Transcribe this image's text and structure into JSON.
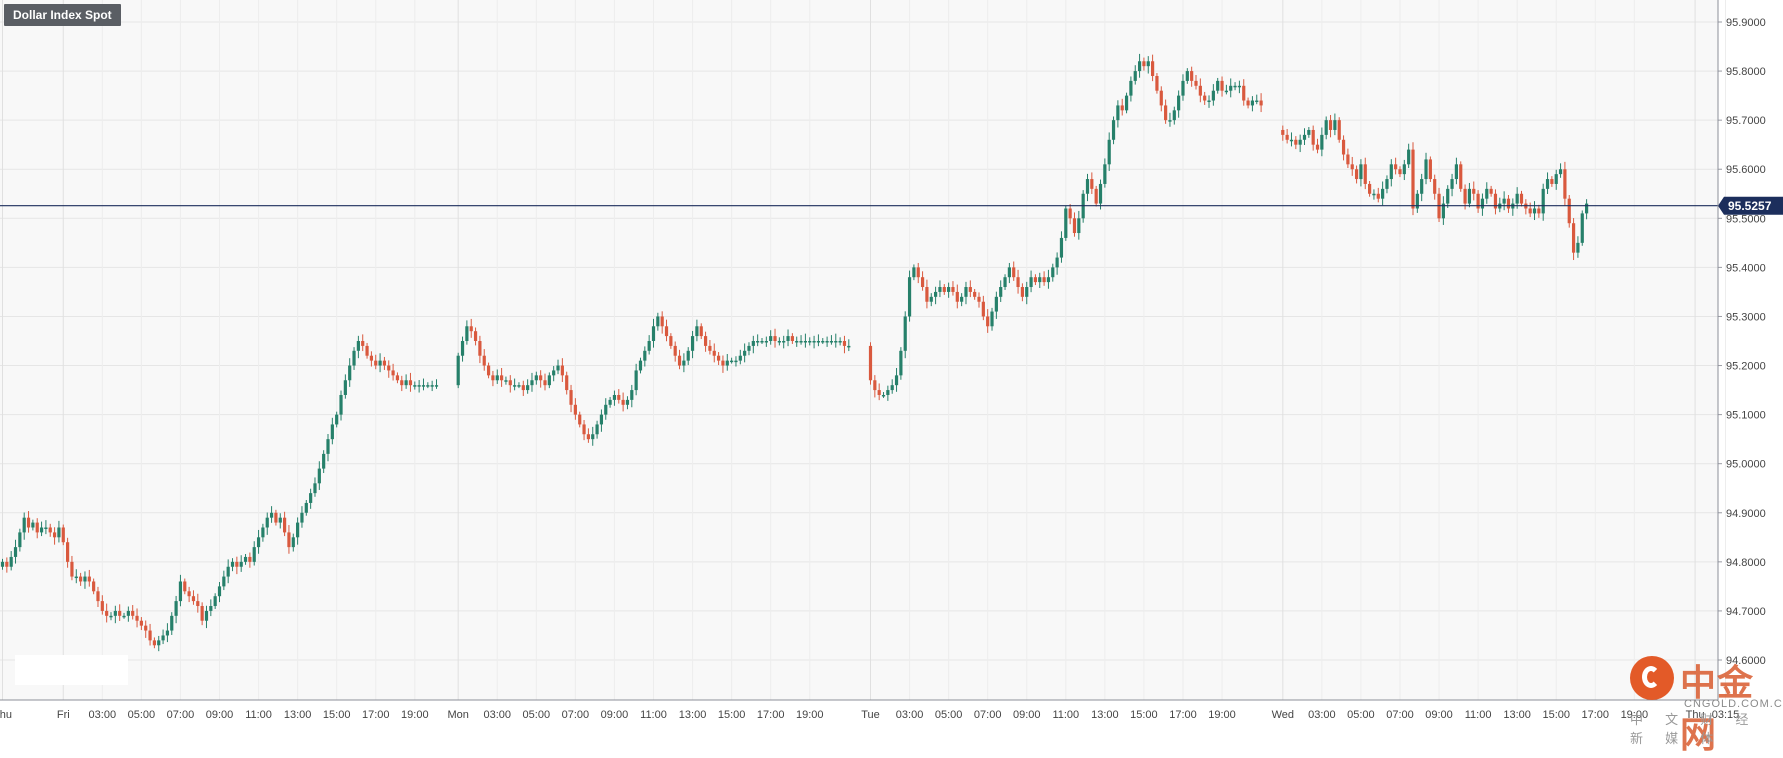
{
  "chart_title": "Dollar Index Spot",
  "price_tag": "95.5257",
  "watermark": {
    "brand": "中金网",
    "url": "CNGOLD.COM.CN",
    "tagline": "中 文 财 经 新 媒 体"
  },
  "colors": {
    "up": "#26806a",
    "down": "#d9593e",
    "price_line": "#1c2e5c",
    "price_tag_bg": "#1c2e5c",
    "grid": "#e6e6e6",
    "plot_bg": "#f8f8f8"
  },
  "chart_data": {
    "type": "candlestick",
    "title": "Dollar Index Spot",
    "ylim": [
      94.57,
      95.94
    ],
    "y_ticks": [
      "95.9000",
      "95.8000",
      "95.7000",
      "95.6000",
      "95.5000",
      "95.4000",
      "95.3000",
      "95.2000",
      "95.1000",
      "95.0000",
      "94.9000",
      "94.8000",
      "94.7000",
      "94.6000"
    ],
    "x_ticks": [
      {
        "label": "Thu",
        "bar": 0
      },
      {
        "label": "Fri",
        "bar": 14
      },
      {
        "label": "03:00",
        "bar": 23
      },
      {
        "label": "05:00",
        "bar": 32
      },
      {
        "label": "07:00",
        "bar": 41
      },
      {
        "label": "09:00",
        "bar": 50
      },
      {
        "label": "11:00",
        "bar": 59
      },
      {
        "label": "13:00",
        "bar": 68
      },
      {
        "label": "15:00",
        "bar": 77
      },
      {
        "label": "17:00",
        "bar": 86
      },
      {
        "label": "19:00",
        "bar": 95
      },
      {
        "label": "Mon",
        "bar": 105
      },
      {
        "label": "03:00",
        "bar": 114
      },
      {
        "label": "05:00",
        "bar": 123
      },
      {
        "label": "07:00",
        "bar": 132
      },
      {
        "label": "09:00",
        "bar": 141
      },
      {
        "label": "11:00",
        "bar": 150
      },
      {
        "label": "13:00",
        "bar": 159
      },
      {
        "label": "15:00",
        "bar": 168
      },
      {
        "label": "17:00",
        "bar": 177
      },
      {
        "label": "19:00",
        "bar": 186
      },
      {
        "label": "Tue",
        "bar": 200
      },
      {
        "label": "03:00",
        "bar": 209
      },
      {
        "label": "05:00",
        "bar": 218
      },
      {
        "label": "07:00",
        "bar": 227
      },
      {
        "label": "09:00",
        "bar": 236
      },
      {
        "label": "11:00",
        "bar": 245
      },
      {
        "label": "13:00",
        "bar": 254
      },
      {
        "label": "15:00",
        "bar": 263
      },
      {
        "label": "17:00",
        "bar": 272
      },
      {
        "label": "19:00",
        "bar": 281
      },
      {
        "label": "Wed",
        "bar": 295
      },
      {
        "label": "03:00",
        "bar": 304
      },
      {
        "label": "05:00",
        "bar": 313
      },
      {
        "label": "07:00",
        "bar": 322
      },
      {
        "label": "09:00",
        "bar": 331
      },
      {
        "label": "11:00",
        "bar": 340
      },
      {
        "label": "13:00",
        "bar": 349
      },
      {
        "label": "15:00",
        "bar": 358
      },
      {
        "label": "17:00",
        "bar": 367
      },
      {
        "label": "19:00",
        "bar": 376
      },
      {
        "label": "Thu",
        "bar": 390
      },
      {
        "label": "03:15",
        "bar": 397
      }
    ],
    "current_price": 95.5257,
    "closes": [
      94.8,
      94.79,
      94.81,
      94.83,
      94.86,
      94.89,
      94.87,
      94.88,
      94.86,
      94.87,
      94.87,
      94.86,
      94.85,
      94.87,
      94.84,
      94.8,
      94.77,
      94.77,
      94.76,
      94.77,
      94.76,
      94.74,
      94.72,
      94.7,
      94.69,
      94.69,
      94.7,
      94.69,
      94.69,
      94.7,
      94.69,
      94.68,
      94.67,
      94.66,
      94.64,
      94.63,
      94.64,
      94.65,
      94.66,
      94.69,
      94.72,
      94.76,
      94.74,
      94.73,
      94.72,
      94.71,
      94.68,
      94.7,
      94.71,
      94.73,
      94.75,
      94.77,
      94.79,
      94.8,
      94.79,
      94.8,
      94.81,
      94.8,
      94.83,
      94.85,
      94.87,
      94.89,
      94.9,
      94.88,
      94.89,
      94.86,
      94.83,
      94.85,
      94.88,
      94.9,
      94.92,
      94.94,
      94.96,
      94.99,
      95.02,
      95.05,
      95.08,
      95.1,
      95.14,
      95.17,
      95.2,
      95.23,
      95.25,
      95.24,
      95.22,
      95.21,
      95.2,
      95.21,
      95.2,
      95.19,
      95.18,
      95.17,
      95.16,
      95.17,
      95.16,
      95.16,
      95.16,
      95.16,
      95.16,
      95.16,
      95.16,
      95.16,
      95.16,
      95.16,
      95.16,
      95.22,
      95.25,
      95.28,
      95.27,
      95.25,
      95.22,
      95.2,
      95.18,
      95.17,
      95.18,
      95.17,
      95.17,
      95.16,
      95.16,
      95.16,
      95.15,
      95.16,
      95.17,
      95.18,
      95.17,
      95.16,
      95.18,
      95.19,
      95.2,
      95.18,
      95.15,
      95.12,
      95.1,
      95.08,
      95.06,
      95.05,
      95.06,
      95.08,
      95.1,
      95.12,
      95.13,
      95.14,
      95.13,
      95.12,
      95.13,
      95.15,
      95.19,
      95.21,
      95.23,
      95.25,
      95.28,
      95.3,
      95.28,
      95.26,
      95.24,
      95.22,
      95.2,
      95.21,
      95.23,
      95.26,
      95.28,
      95.26,
      95.24,
      95.23,
      95.22,
      95.21,
      95.2,
      95.21,
      95.21,
      95.21,
      95.22,
      95.23,
      95.24,
      95.25,
      95.25,
      95.25,
      95.25,
      95.26,
      95.25,
      95.25,
      95.25,
      95.26,
      95.25,
      95.25,
      95.25,
      95.25,
      95.25,
      95.25,
      95.25,
      95.25,
      95.25,
      95.25,
      95.25,
      95.25,
      95.24,
      95.24,
      95.24,
      95.24,
      95.24,
      95.24,
      95.17,
      95.15,
      95.14,
      95.14,
      95.15,
      95.16,
      95.18,
      95.23,
      95.3,
      95.38,
      95.4,
      95.38,
      95.36,
      95.33,
      95.34,
      95.35,
      95.36,
      95.35,
      95.36,
      95.35,
      95.33,
      95.34,
      95.36,
      95.35,
      95.34,
      95.33,
      95.3,
      95.28,
      95.31,
      95.34,
      95.36,
      95.38,
      95.4,
      95.38,
      95.36,
      95.34,
      95.36,
      95.38,
      95.37,
      95.38,
      95.37,
      95.38,
      95.4,
      95.42,
      95.46,
      95.52,
      95.5,
      95.47,
      95.5,
      95.55,
      95.58,
      95.56,
      95.53,
      95.57,
      95.61,
      95.66,
      95.7,
      95.73,
      95.72,
      95.75,
      95.78,
      95.8,
      95.82,
      95.81,
      95.82,
      95.79,
      95.76,
      95.73,
      95.7,
      95.7,
      95.72,
      95.75,
      95.78,
      95.8,
      95.78,
      95.77,
      95.75,
      95.74,
      95.74,
      95.76,
      95.78,
      95.76,
      95.76,
      95.77,
      95.77,
      95.77,
      95.74,
      95.73,
      95.74,
      95.74,
      95.73,
      95.71,
      95.69,
      95.68,
      95.68,
      95.67,
      95.66,
      95.66,
      95.65,
      95.66,
      95.67,
      95.68,
      95.65,
      95.64,
      95.67,
      95.7,
      95.68,
      95.7,
      95.66,
      95.63,
      95.61,
      95.6,
      95.58,
      95.61,
      95.57,
      95.55,
      95.55,
      95.54,
      95.56,
      95.58,
      95.61,
      95.6,
      95.59,
      95.61,
      95.64,
      95.52,
      95.55,
      95.58,
      95.62,
      95.58,
      95.55,
      95.5,
      95.53,
      95.56,
      95.58,
      95.61,
      95.56,
      95.53,
      95.56,
      95.55,
      95.52,
      95.54,
      95.56,
      95.55,
      95.52,
      95.53,
      95.54,
      95.52,
      95.53,
      95.55,
      95.53,
      95.52,
      95.51,
      95.52,
      95.51,
      95.56,
      95.58,
      95.57,
      95.59,
      95.6,
      95.54,
      95.49,
      95.43,
      95.45,
      95.51,
      95.53
    ],
    "gaps": [
      101,
      102,
      103,
      104,
      196,
      197,
      198,
      199,
      291,
      292,
      293,
      294,
      386,
      387,
      388,
      389
    ]
  }
}
